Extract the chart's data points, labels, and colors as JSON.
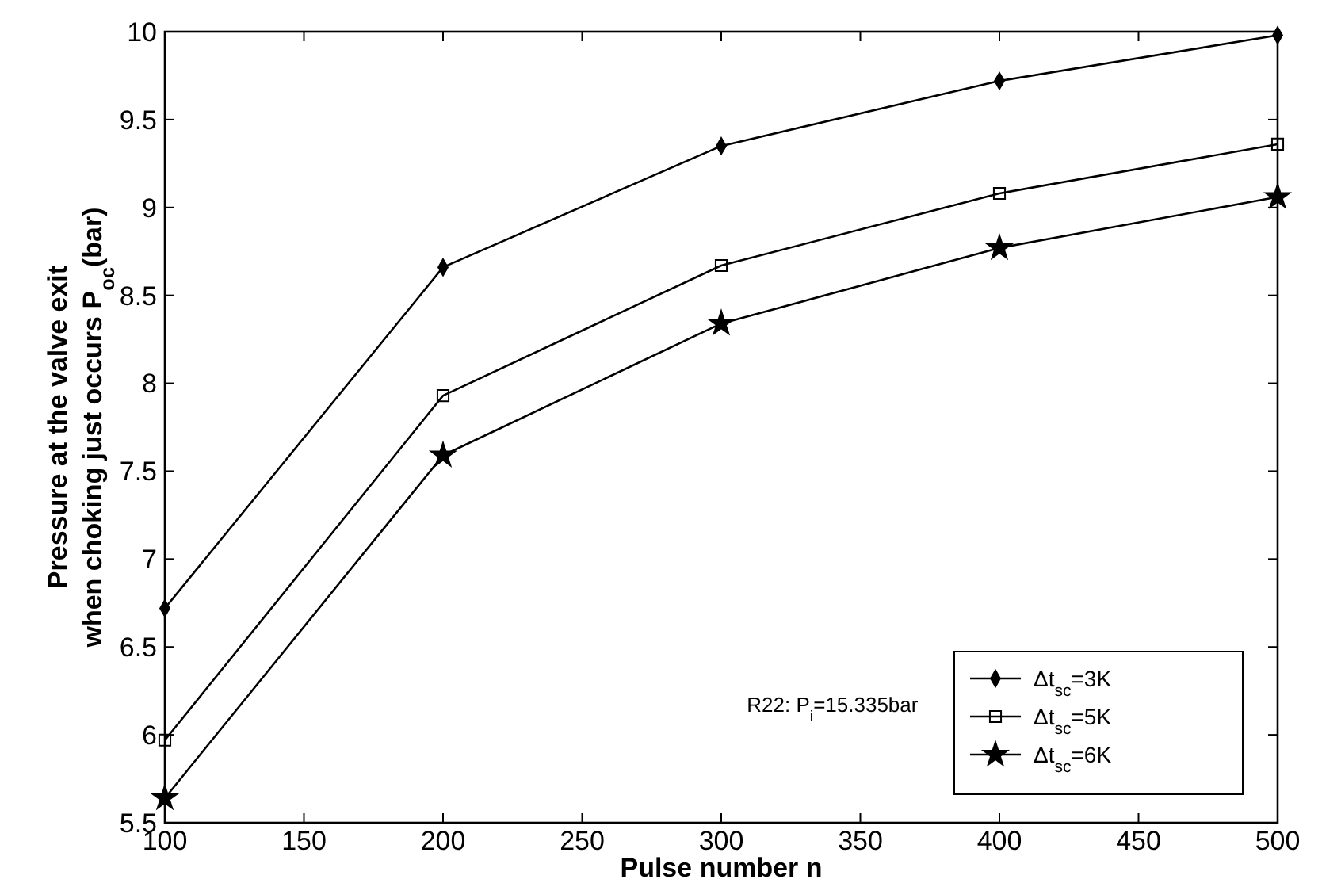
{
  "chart_data": {
    "type": "line",
    "xlabel": "Pulse number n",
    "ylabel": "Pressure at the valve exit\nwhen choking just occurs P$_{oc}$(bar)",
    "x": [
      100,
      200,
      300,
      400,
      500
    ],
    "xlim": [
      100,
      500
    ],
    "xticks": [
      100,
      150,
      200,
      250,
      300,
      350,
      400,
      450,
      500
    ],
    "ylim": [
      5.5,
      10
    ],
    "yticks": [
      5.5,
      6,
      6.5,
      7,
      7.5,
      8,
      8.5,
      9,
      9.5,
      10
    ],
    "grid": false,
    "legend": "bottom right",
    "line_style": "solid",
    "annotations": [
      "R22: P$_{i}$=15.335bar"
    ],
    "series": [
      {
        "name": "Δt$_{sc}$=3K",
        "color": "#000000",
        "marker": "diamond",
        "values": [
          6.72,
          8.66,
          9.35,
          9.72,
          9.98
        ]
      },
      {
        "name": "Δt$_{sc}$=5K",
        "color": "#000000",
        "marker": "square",
        "values": [
          5.97,
          7.93,
          8.67,
          9.08,
          9.36
        ]
      },
      {
        "name": "Δt$_{sc}$=6K",
        "color": "#000000",
        "marker": "star",
        "values": [
          5.64,
          7.59,
          8.34,
          8.77,
          9.06
        ]
      }
    ]
  }
}
